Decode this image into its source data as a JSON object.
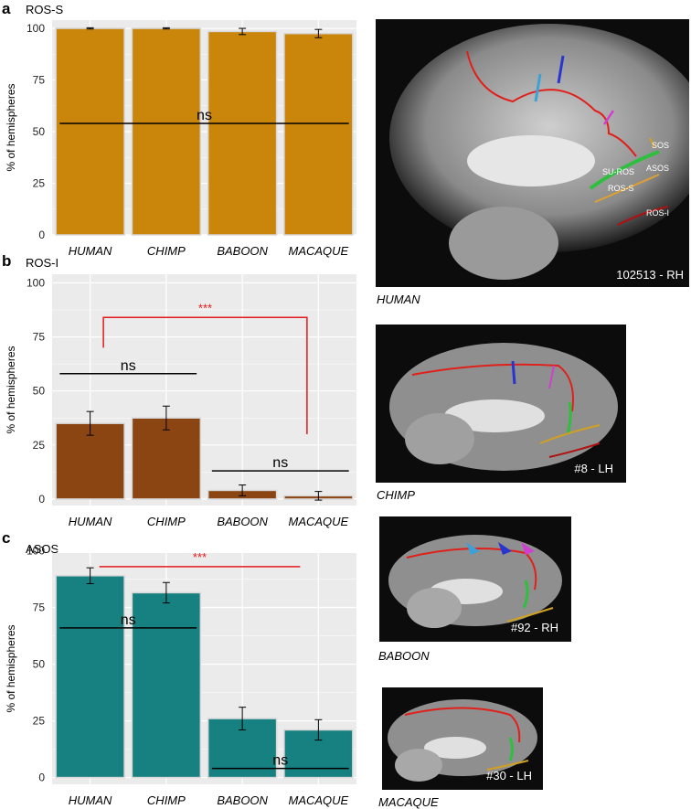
{
  "panels": [
    {
      "letter": "a",
      "title": "ROS-S"
    },
    {
      "letter": "b",
      "title": "ROS-I"
    },
    {
      "letter": "c",
      "title": "ASOS"
    }
  ],
  "colors": {
    "ros_s": "#C9860A",
    "ros_i": "#8B4513",
    "asos": "#178080",
    "panel_bg": "#EBEBEB",
    "grid": "#FFFFFF",
    "sig": "#E31A1C"
  },
  "chart_data": [
    {
      "type": "bar",
      "title": "ROS-S",
      "categories": [
        "HUMAN",
        "CHIMP",
        "BABOON",
        "MACAQUE"
      ],
      "values": [
        100,
        100,
        98.5,
        97.5
      ],
      "errors": [
        0.3,
        0.3,
        1.5,
        2
      ],
      "ylabel": "% of hemispheres",
      "ylim": [
        0,
        104
      ],
      "yticks": [
        0,
        25,
        50,
        75,
        100
      ],
      "grid": true,
      "annotations": [
        {
          "label": "ns",
          "from": "HUMAN",
          "to": "MACAQUE",
          "y": 54,
          "color": "black"
        }
      ]
    },
    {
      "type": "bar",
      "title": "ROS-I",
      "categories": [
        "HUMAN",
        "CHIMP",
        "BABOON",
        "MACAQUE"
      ],
      "values": [
        35,
        37.5,
        4,
        1.5
      ],
      "errors": [
        5.5,
        5.5,
        2.5,
        2
      ],
      "ylabel": "% of hemispheres",
      "ylim": [
        -3,
        104
      ],
      "yticks": [
        0,
        25,
        50,
        75,
        100
      ],
      "grid": true,
      "annotations": [
        {
          "label": "ns",
          "from": "HUMAN",
          "to": "CHIMP",
          "y": 58,
          "color": "black"
        },
        {
          "label": "ns",
          "from": "BABOON",
          "to": "MACAQUE",
          "y": 13,
          "color": "black"
        },
        {
          "label": "***",
          "from": "HUMAN",
          "to": "MACAQUE",
          "y": 84,
          "color": "red",
          "bracket": [
            70,
            30
          ]
        }
      ]
    },
    {
      "type": "bar",
      "title": "ASOS",
      "categories": [
        "HUMAN",
        "CHIMP",
        "BABOON",
        "MACAQUE"
      ],
      "values": [
        89,
        81.5,
        26,
        21
      ],
      "errors": [
        3.5,
        4.5,
        5,
        4.5
      ],
      "ylabel": "% of hemispheres",
      "ylim": [
        -3,
        99
      ],
      "yticks": [
        0,
        25,
        50,
        75,
        100
      ],
      "grid": true,
      "annotations": [
        {
          "label": "ns",
          "from": "HUMAN",
          "to": "CHIMP",
          "y": 66,
          "color": "black"
        },
        {
          "label": "ns",
          "from": "BABOON",
          "to": "MACAQUE",
          "y": 4,
          "color": "black"
        },
        {
          "label": "***",
          "from": "HUMAN",
          "to": "MACAQUE",
          "y": 93,
          "color": "red"
        }
      ]
    }
  ],
  "brains": [
    {
      "species": "HUMAN",
      "id": "102513 - RH",
      "labels": [
        "SOS",
        "SU-ROS",
        "ASOS",
        "ROS-S",
        "ROS-I"
      ]
    },
    {
      "species": "CHIMP",
      "id": "#8 - LH"
    },
    {
      "species": "BABOON",
      "id": "#92 - RH"
    },
    {
      "species": "MACAQUE",
      "id": "#30 - LH"
    }
  ]
}
